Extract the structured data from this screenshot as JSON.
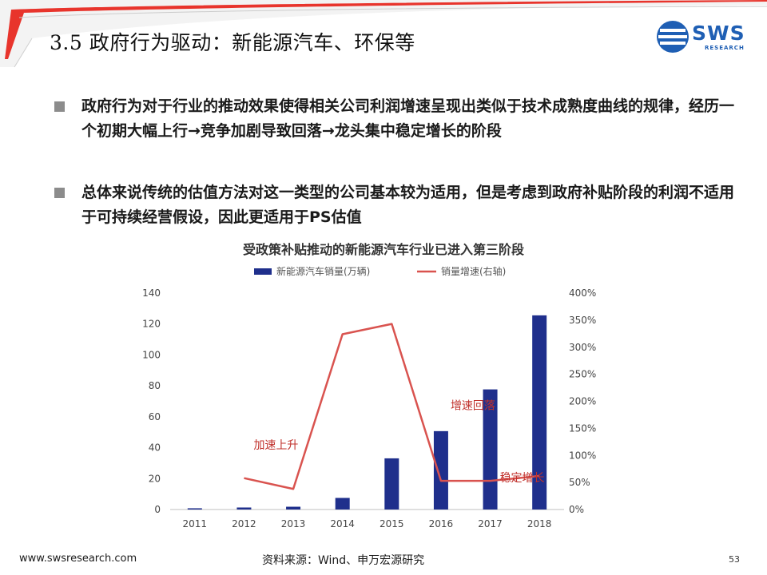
{
  "header": {
    "title": "3.5 政府行为驱动：新能源汽车、环保等",
    "logo_text": "SWS",
    "logo_subtext": "RESEARCH"
  },
  "bullets": [
    "政府行为对于行业的推动效果使得相关公司利润增速呈现出类似于技术成熟度曲线的规律，经历一个初期大幅上行→竞争加剧导致回落→龙头集中稳定增长的阶段",
    "总体来说传统的估值方法对这一类型的公司基本较为适用，但是考虑到政府补贴阶段的利润不适用于可持续经营假设，因此更适用于PS估值"
  ],
  "chart_data": {
    "type": "bar",
    "title": "受政策补贴推动的新能源汽车行业已进入第三阶段",
    "categories": [
      "2011",
      "2012",
      "2013",
      "2014",
      "2015",
      "2016",
      "2017",
      "2018"
    ],
    "series": [
      {
        "name": "新能源汽车销量(万辆)",
        "type": "bar",
        "axis": "left",
        "color": "#1f2f8c",
        "values": [
          0.8,
          1.3,
          1.8,
          7.5,
          33.1,
          50.7,
          77.7,
          125.6
        ]
      },
      {
        "name": "销量增速(右轴)",
        "type": "line",
        "axis": "right",
        "color": "#d9534f",
        "values": [
          null,
          58,
          38,
          324,
          343,
          53,
          53,
          62
        ]
      }
    ],
    "y_left": {
      "min": 0,
      "max": 140,
      "ticks": [
        "0",
        "20",
        "40",
        "60",
        "80",
        "100",
        "120",
        "140"
      ]
    },
    "y_right": {
      "min": 0,
      "max": 400,
      "ticks": [
        "0%",
        "50%",
        "100%",
        "150%",
        "200%",
        "250%",
        "300%",
        "350%",
        "400%"
      ]
    },
    "legend_position": "top",
    "grid": false,
    "annotations": [
      {
        "text": "加速上升",
        "category": "2012",
        "value": 112
      },
      {
        "text": "增速回落",
        "category": "2016",
        "value": 185
      },
      {
        "text": "稳定增长",
        "category": "2017",
        "value": 52
      }
    ]
  },
  "footer": {
    "url": "www.swsresearch.com",
    "source": "资料来源：Wind、申万宏源研究",
    "page": "53"
  },
  "colors": {
    "brand_blue": "#1f5fb4",
    "accent_red": "#e8342c",
    "bar_navy": "#1f2f8c",
    "line_red": "#d9534f"
  }
}
